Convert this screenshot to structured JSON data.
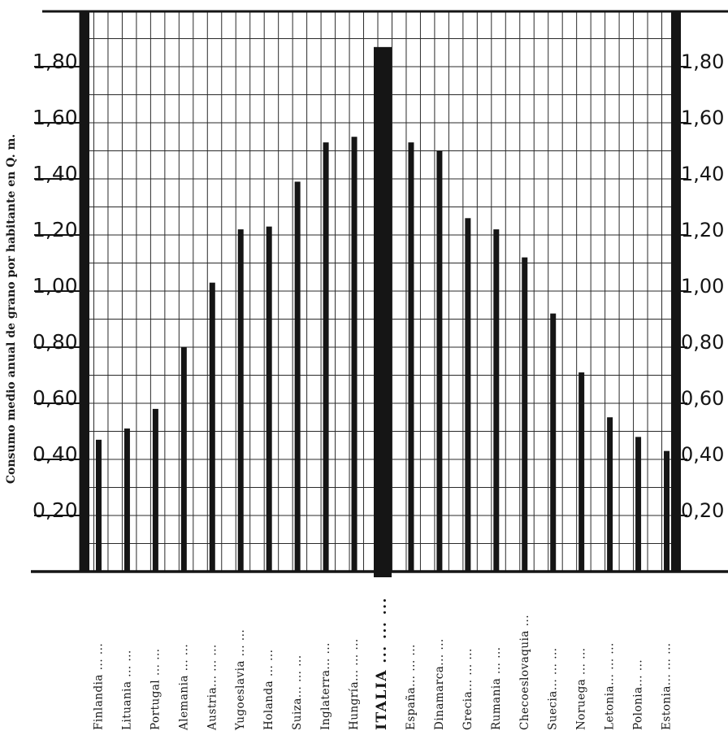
{
  "chart_data": {
    "type": "bar",
    "ylabel": "Consumo medio anual de grano por habitante en Q. m.",
    "ylim": [
      0,
      1.92
    ],
    "yticks": [
      "0,20",
      "0,40",
      "0,60",
      "0,80",
      "1,00",
      "1,20",
      "1,40",
      "1,60",
      "1,80"
    ],
    "grid": true,
    "categories": [
      "Finlandia ... ...",
      "Lituania ... ...",
      "Portugal ... ...",
      "Alemania ... ...",
      "Austria... ... ...",
      "Yugoeslavia ... ...",
      "Holanda ... ...",
      "Suiza... ... ...",
      "Inglaterra... ...",
      "Hungría... ... ...",
      "ITALIA ... ... ...",
      "España... ... ...",
      "Dinamarca... ...",
      "Grecia... ... ...",
      "Rumania ... ...",
      "Checoeslovaquia ...",
      "Suecia... ... ...",
      "Noruega ... ...",
      "Letonia... ... ...",
      "Polonia... ...",
      "Estonia... ... ..."
    ],
    "values": [
      0.47,
      0.51,
      0.58,
      0.8,
      1.03,
      1.22,
      1.23,
      1.39,
      1.53,
      1.55,
      1.87,
      1.53,
      1.5,
      1.26,
      1.22,
      1.12,
      0.92,
      0.71,
      0.55,
      0.48,
      0.43
    ],
    "highlight": "ITALIA ... ... ...",
    "colors": {
      "ink": "#151515",
      "grid": "#2a2a2a",
      "paper": "#ffffff"
    }
  }
}
